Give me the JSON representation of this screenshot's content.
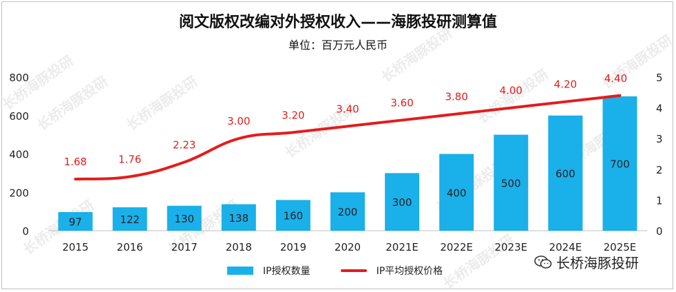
{
  "title": "阅文版权改编对外授权收入——海豚投研测算值",
  "subtitle": "单位：百万元人民币",
  "brand": {
    "name": "长桥海豚投研",
    "icon": "wechat-icon"
  },
  "watermark": "长桥海豚投研",
  "colors": {
    "bar": "#1ab0ea",
    "line": "#e41c1c",
    "line_label": "#e41c1c",
    "text": "#111111",
    "grid": "#e6e6e6"
  },
  "chart_data": {
    "type": "bar",
    "categories": [
      "2015",
      "2016",
      "2017",
      "2018",
      "2019",
      "2020",
      "2021E",
      "2022E",
      "2023E",
      "2024E",
      "2025E"
    ],
    "series": [
      {
        "name": "IP授权数量",
        "type": "bar",
        "axis": "left",
        "values": [
          97,
          122,
          130,
          138,
          160,
          200,
          300,
          400,
          500,
          600,
          700
        ]
      },
      {
        "name": "IP平均授权价格",
        "type": "line",
        "axis": "right",
        "values": [
          1.68,
          1.76,
          2.23,
          3.0,
          3.2,
          3.4,
          3.6,
          3.8,
          4.0,
          4.2,
          4.4
        ],
        "labels": [
          "1.68",
          "1.76",
          "2.23",
          "3.00",
          "3.20",
          "3.40",
          "3.60",
          "3.80",
          "4.00",
          "4.20",
          "4.40"
        ]
      }
    ],
    "y_left": {
      "ylim": [
        0,
        800
      ],
      "ticks": [
        0,
        200,
        400,
        600,
        800
      ]
    },
    "y_right": {
      "ylim": [
        0,
        5
      ],
      "ticks": [
        0,
        1,
        2,
        3,
        4,
        5
      ]
    },
    "grid": false,
    "legend": "bottom"
  }
}
